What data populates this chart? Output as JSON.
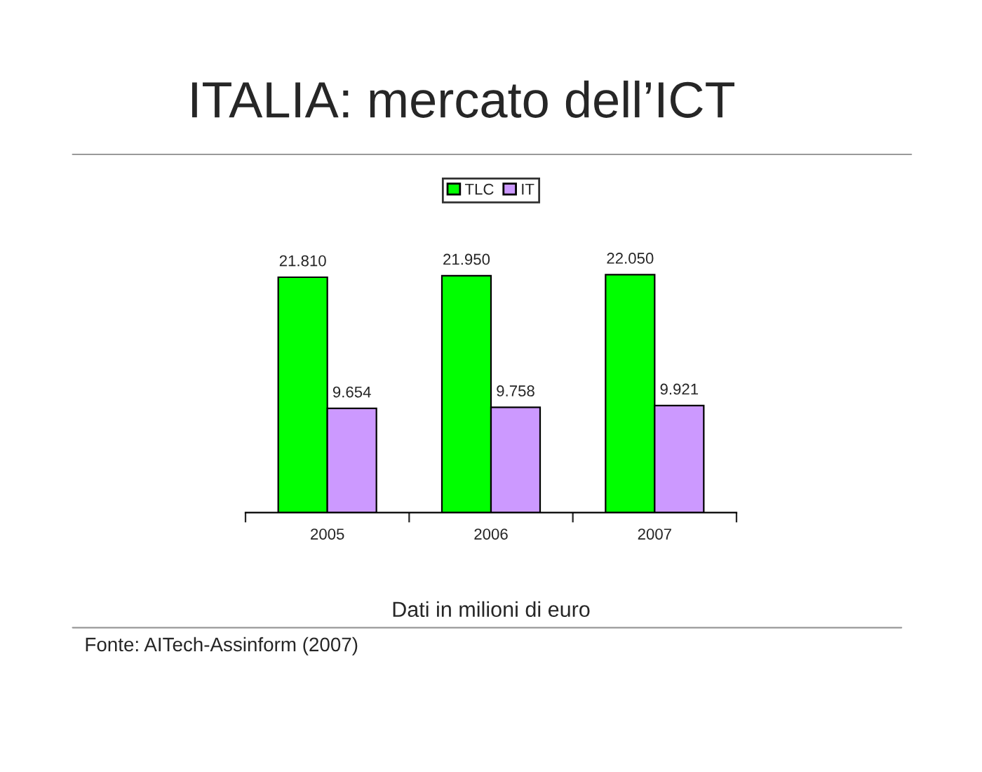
{
  "chart_data": {
    "type": "bar",
    "title": "ITALIA: mercato dell’ICT",
    "categories": [
      "2005",
      "2006",
      "2007"
    ],
    "series": [
      {
        "name": "TLC",
        "color": "#00ff00",
        "values": [
          21810,
          21950,
          22050
        ],
        "value_labels": [
          "21.810",
          "21.950",
          "22.050"
        ]
      },
      {
        "name": "IT",
        "color": "#cc99ff",
        "values": [
          9654,
          9758,
          9921
        ],
        "value_labels": [
          "9.654",
          "9.758",
          "9.921"
        ]
      }
    ],
    "xlabel": "Dati in milioni di euro",
    "annotations": [
      "Fonte: AITech-Assinform (2007)"
    ],
    "legend": "top",
    "grid": false
  }
}
